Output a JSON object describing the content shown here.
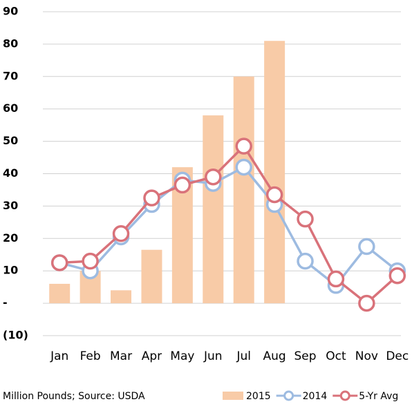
{
  "chart_data": {
    "type": "bar",
    "categories": [
      "Jan",
      "Feb",
      "Mar",
      "Apr",
      "May",
      "Jun",
      "Jul",
      "Aug",
      "Sep",
      "Oct",
      "Nov",
      "Dec"
    ],
    "series": [
      {
        "name": "2015",
        "type": "bar",
        "color": "#f8cba7",
        "values": [
          6,
          10,
          4,
          16.5,
          42,
          58,
          70,
          81,
          null,
          null,
          null,
          null
        ]
      },
      {
        "name": "2014",
        "type": "line",
        "color": "#9dbbe1",
        "values": [
          12.5,
          10,
          20.5,
          30.5,
          38,
          37,
          42,
          30.5,
          13,
          5.5,
          17.5,
          10
        ]
      },
      {
        "name": "5-Yr Avg",
        "type": "line",
        "color": "#d9727a",
        "values": [
          12.5,
          13,
          21.5,
          32.5,
          36.5,
          39,
          48.5,
          33.5,
          26,
          7.5,
          0,
          8.5
        ]
      }
    ],
    "ylim": [
      -10,
      90
    ],
    "yticks": [
      {
        "value": -10,
        "label": "(10)"
      },
      {
        "value": 0,
        "label": "-"
      },
      10,
      20,
      30,
      40,
      50,
      60,
      70,
      80,
      90
    ],
    "grid": true,
    "note": "Million Pounds; Source: USDA",
    "legend": "bottom-right"
  }
}
